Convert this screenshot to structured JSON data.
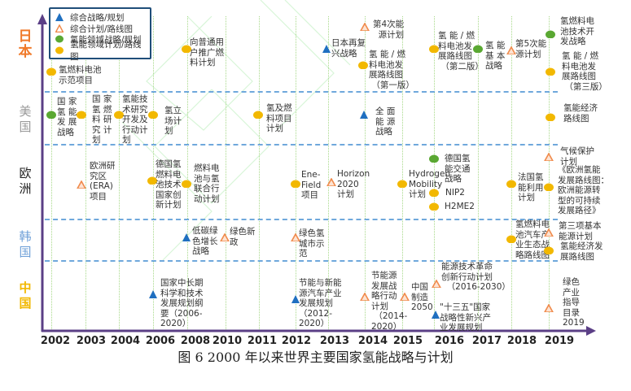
{
  "legend": [
    {
      "label": "综合战略/规划",
      "type": "strategy"
    },
    {
      "label": "综合计划/路线图",
      "type": "plan"
    },
    {
      "label": "氢能领域战略/规划",
      "type": "h2-strategy"
    },
    {
      "label": "氢能领域计划/路线图",
      "type": "h2-plan"
    }
  ],
  "colors": {
    "strategy": "#1f6fc0",
    "plan": "#f08a4b",
    "h2-strategy": "#5aa832",
    "h2-plan": "#f2b800",
    "japan": "#f07a2a",
    "usa": "#999999",
    "europe": "#222222",
    "korea": "#6fa0d8",
    "china": "#f2b800",
    "axis": "#5b3f86"
  },
  "lanes": [
    {
      "label": "日\n本"
    },
    {
      "label": "美\n国"
    },
    {
      "label": "欧\n洲"
    },
    {
      "label": "韩\n国"
    },
    {
      "label": "中\n国"
    }
  ],
  "years": [
    "2002",
    "2003",
    "2004",
    "2006",
    "2008",
    "2010",
    "2011",
    "2012",
    "2013",
    "2014",
    "2015",
    "2016",
    "2017",
    "2018",
    "2019"
  ],
  "events": [
    {
      "text": "氢燃料电池\n示范项目",
      "type": "h2-plan"
    },
    {
      "text": "向普通用\n户推广燃\n料计划",
      "type": "h2-plan"
    },
    {
      "text": "日本再复\n兴战略",
      "type": "strategy"
    },
    {
      "text": "第4次能\n  源计划",
      "type": "plan"
    },
    {
      "text": "氢 能 / 燃\n料电池发\n展路线图\n （第一版）",
      "type": "h2-plan"
    },
    {
      "text": "氢 能 / 燃\n料电池发\n展路线图\n （第二版）",
      "type": "h2-plan"
    },
    {
      "text": "氢 能\n基 本\n战略",
      "type": "h2-strategy"
    },
    {
      "text": "第5次能\n源计划",
      "type": "plan"
    },
    {
      "text": "氢燃料电\n池技术开\n发战略",
      "type": "h2-strategy"
    },
    {
      "text": "氢 能 / 燃\n料电池发\n展路线图\n （第三版）",
      "type": "h2-plan"
    },
    {
      "text": "国 家\n氢 能\n发 展\n战略",
      "type": "h2-strategy"
    },
    {
      "text": "国 家\n氢 燃\n料 研\n究 计\n划",
      "type": "h2-plan"
    },
    {
      "text": "氢能技\n术研究\n开发及\n行动计\n划",
      "type": "h2-plan"
    },
    {
      "text": "氢立\n场计\n划",
      "type": "h2-plan"
    },
    {
      "text": "氢及燃\n料项目\n计划",
      "type": "h2-plan"
    },
    {
      "text": "全 面\n能 源\n战略",
      "type": "strategy"
    },
    {
      "text": "氢能经济\n路线图",
      "type": "h2-plan"
    },
    {
      "text": "欧洲研\n究区\n(ERA)\n项目",
      "type": "plan"
    },
    {
      "text": "德国氢\n燃料电\n池技术\n国家创\n新计划",
      "type": "h2-plan"
    },
    {
      "text": "燃料电\n池与氢\n联合行\n动计划",
      "type": "h2-plan"
    },
    {
      "text": "Ene-\nField\n项目",
      "type": "h2-plan"
    },
    {
      "text": "Horizon\n2020\n计划",
      "type": "plan"
    },
    {
      "text": "Hydrogen\nMobility\n计划",
      "type": "h2-plan"
    },
    {
      "text": "德国氢\n能交通\n战略",
      "type": "h2-strategy"
    },
    {
      "text": "NIP2",
      "type": "h2-plan"
    },
    {
      "text": "H2ME2",
      "type": "h2-plan"
    },
    {
      "text": "法国氢\n能利用\n计划",
      "type": "h2-plan"
    },
    {
      "text": "气候保护\n计划",
      "type": "plan"
    },
    {
      "text": "《欧洲氢能\n发展路线图：\n欧洲能源转\n型的可持续\n发展路径》",
      "type": "h2-plan"
    },
    {
      "text": "低碳绿\n色增长\n战略",
      "type": "strategy"
    },
    {
      "text": "绿色新\n政",
      "type": "plan"
    },
    {
      "text": "绿色氢\n城市示\n范",
      "type": "plan"
    },
    {
      "text": "氢燃料电\n池汽车产\n业生态战\n略路线图",
      "type": "h2-plan"
    },
    {
      "text": "第三项基本\n能源计划",
      "type": "plan"
    },
    {
      "text": "氢能经济发\n展路线图",
      "type": "h2-plan"
    },
    {
      "text": "国家中长期\n科学和技术\n发展规划纲\n要（2006-\n2020）",
      "type": "strategy"
    },
    {
      "text": "节能与新能\n源汽车产业\n发展规划\n（2012-\n2020）",
      "type": "strategy"
    },
    {
      "text": "节能源\n发展战\n略行动\n计划\n （2014-\n2020）",
      "type": "plan"
    },
    {
      "text": "中国\n制造\n2050",
      "type": "plan"
    },
    {
      "text": "能源技术革命\n创新行动计划\n  （2016-2030）",
      "type": "plan"
    },
    {
      "text": "\"十三五\"国家\n战略性新兴产\n业发展规划",
      "type": "strategy"
    },
    {
      "text": "绿色\n产业\n指导\n目录\n2019",
      "type": "plan"
    }
  ],
  "caption": "图 6  2000 年以来世界主要国家氢能战略与计划"
}
